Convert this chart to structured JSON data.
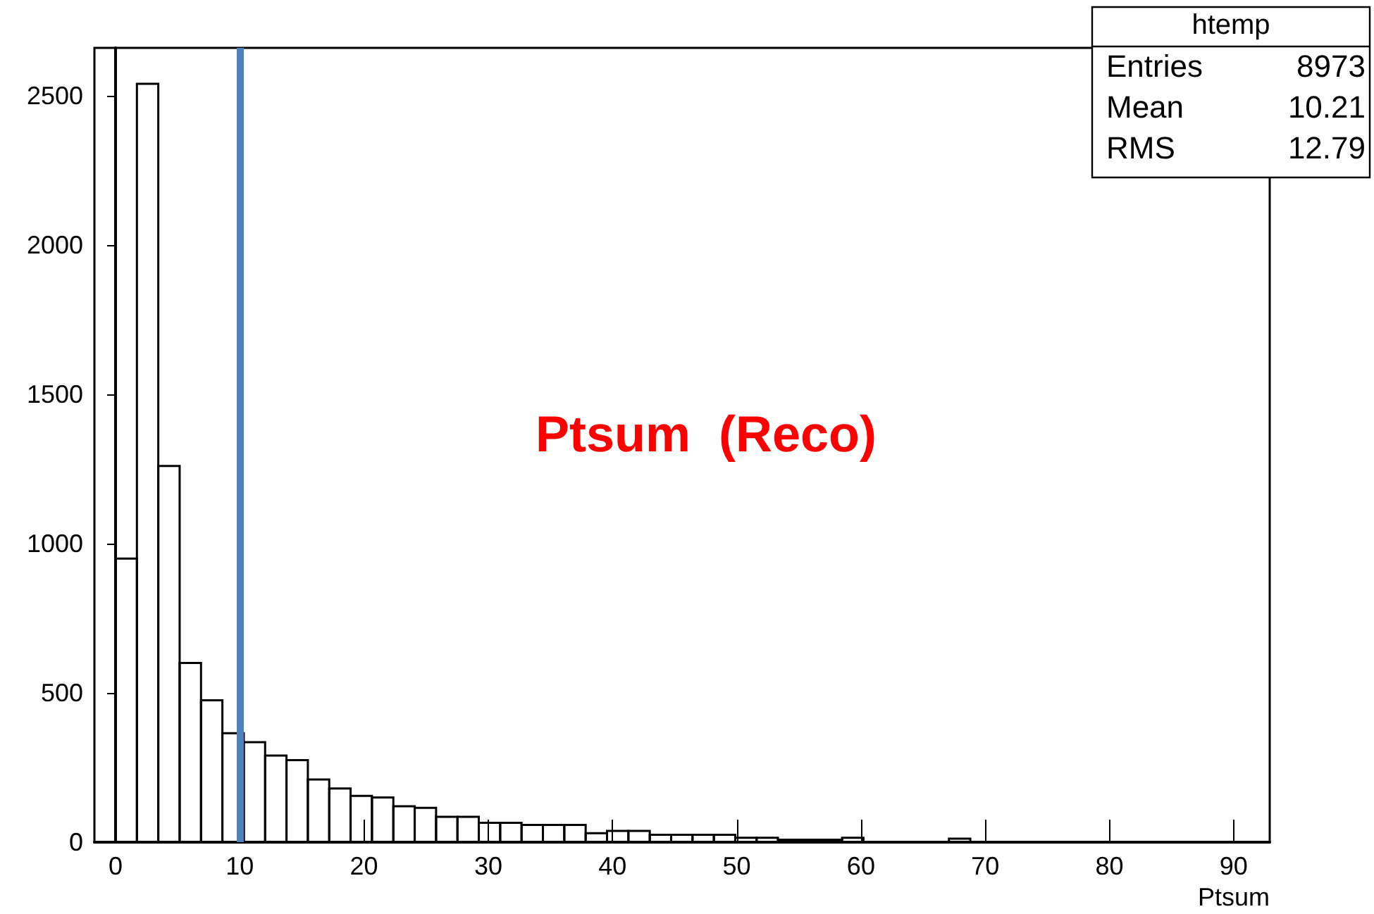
{
  "chart_data": {
    "type": "histogram",
    "xlabel": "Ptsum",
    "bins": [
      0,
      1.72,
      3.44,
      5.16,
      6.88,
      8.6,
      10.32,
      12.04,
      13.76,
      15.48,
      17.2,
      18.92,
      20.64,
      22.36,
      24.08,
      25.8,
      27.52,
      29.24,
      30.96,
      32.68,
      34.4,
      36.12,
      37.84,
      39.56,
      41.28,
      43,
      44.72,
      46.44,
      48.16,
      49.88,
      51.6,
      53.32,
      55.04,
      56.76,
      58.48,
      60.2,
      61.92,
      63.64,
      65.36,
      67.08,
      68.8
    ],
    "values": [
      950,
      2540,
      1260,
      600,
      475,
      365,
      335,
      290,
      275,
      210,
      180,
      155,
      150,
      120,
      115,
      85,
      85,
      65,
      65,
      58,
      58,
      58,
      30,
      38,
      38,
      25,
      25,
      25,
      25,
      15,
      15,
      8,
      8,
      8,
      15,
      0,
      0,
      0,
      0,
      12
    ],
    "color": "#000000",
    "xlim": [
      -1.7,
      92.9
    ],
    "xticks": [
      0,
      10,
      20,
      30,
      40,
      50,
      60,
      70,
      80,
      90
    ],
    "ylim": [
      0,
      2660
    ],
    "yticks": [
      0,
      500,
      1000,
      1500,
      2000,
      2500
    ],
    "grid": false,
    "ref_lines": [
      {
        "axis": "x",
        "value": 10,
        "label": null,
        "color": "#4f81bd"
      }
    ],
    "annotations": [
      "Ptsum  (Reco)",
      "htemp",
      "Entries",
      "8973",
      "Mean",
      "10.21",
      "RMS",
      "12.79"
    ]
  }
}
